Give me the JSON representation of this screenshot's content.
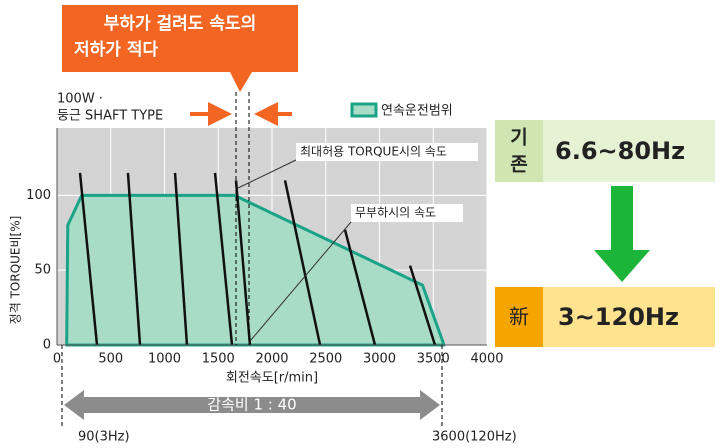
{
  "chart_data": {
    "type": "area",
    "callout": [
      "부하가 걸려도 속도의",
      "저하가 적다"
    ],
    "model": [
      "100W ·",
      "둥근 SHAFT TYPE"
    ],
    "legend": "연속운전범위",
    "annotations": [
      "최대허용 TORQUE시의 속도",
      "무부하시의 속도"
    ],
    "xlabel": "회전속도[r/min]",
    "ylabel": "정격 TORQUE비[%]",
    "xlim": [
      0,
      4000
    ],
    "xticks": [
      0,
      500,
      1000,
      1500,
      2000,
      2500,
      3000,
      3500,
      4000
    ],
    "ylim": [
      0,
      145
    ],
    "yticks": [
      0,
      50,
      100
    ],
    "grid": true,
    "x": [
      90,
      100,
      230,
      1650,
      3400,
      3600
    ],
    "values": [
      0,
      80,
      100,
      100,
      40,
      0
    ],
    "color": "#1aa388",
    "fill": "#a9dcc7",
    "curves": [
      {
        "x": [
          214,
          372
        ],
        "values": [
          115,
          0
        ]
      },
      {
        "x": [
          660,
          772
        ],
        "values": [
          115,
          0
        ]
      },
      {
        "x": [
          1098,
          1209
        ],
        "values": [
          115,
          0
        ]
      },
      {
        "x": [
          1470,
          1628
        ],
        "values": [
          115,
          0
        ]
      },
      {
        "x": [
          1665,
          1795
        ],
        "values": [
          110,
          0
        ]
      },
      {
        "x": [
          2121,
          2447
        ],
        "values": [
          110,
          0
        ]
      },
      {
        "x": [
          2679,
          2958
        ],
        "values": [
          77,
          0
        ]
      },
      {
        "x": [
          3284,
          3516
        ],
        "values": [
          53,
          0
        ]
      }
    ],
    "range": {
      "label": "감속비 1 : 40",
      "start": "90(3Hz)",
      "end": "3600(120Hz)"
    },
    "compare": {
      "old_tag": [
        "기",
        "존"
      ],
      "old": "6.6~80Hz",
      "new_tag": "新",
      "new": "3~120Hz"
    }
  }
}
